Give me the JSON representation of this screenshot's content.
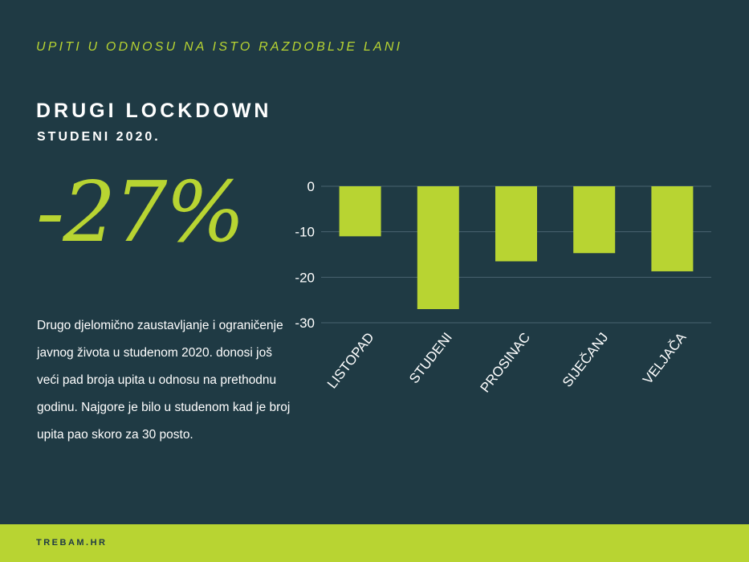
{
  "header": {
    "kicker": "UPITI U ODNOSU NA ISTO RAZDOBLJE LANI",
    "title": "DRUGI LOCKDOWN",
    "subtitle": "STUDENI 2020."
  },
  "highlight": {
    "stat": "-27%"
  },
  "body": {
    "description": "Drugo djelomično zaustavljanje i ograničenje  javnog života u studenom 2020. donosi još veći pad broja upita u odnosu na prethodnu godinu. Najgore je bilo u studenom kad je broj upita pao skoro za 30 posto."
  },
  "footer": {
    "label": "TREBAM.HR"
  },
  "colors": {
    "background": "#1f3a44",
    "accent": "#b8d432",
    "text": "#ffffff"
  },
  "chart_data": {
    "type": "bar",
    "categories": [
      "LISTOPAD",
      "STUDENI",
      "PROSINAC",
      "SIJEČANJ",
      "VELJAČA"
    ],
    "values": [
      -11,
      -27,
      -16.5,
      -14.7,
      -18.7
    ],
    "yticks": [
      0,
      -10,
      -20,
      -30
    ],
    "ylim": [
      -30,
      0
    ],
    "grid": true,
    "bar_color": "#b8d432"
  }
}
